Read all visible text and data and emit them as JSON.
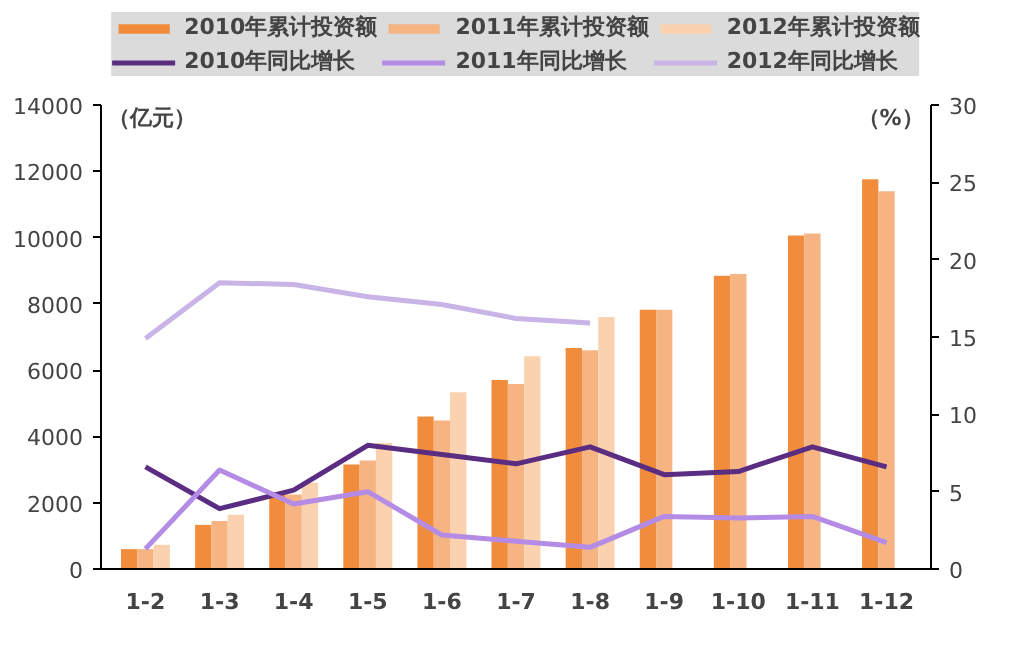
{
  "chart_data": {
    "type": "bar",
    "ylabel": "（亿元）",
    "y2label": "（%）",
    "categories": [
      "1-2",
      "1-3",
      "1-4",
      "1-5",
      "1-6",
      "1-7",
      "1-8",
      "1-9",
      "1-10",
      "1-11",
      "1-12"
    ],
    "series": [
      {
        "name": "2010年累计投资额",
        "color": "#f08c3c",
        "values": [
          600,
          1330,
          2300,
          3150,
          4600,
          5700,
          6670,
          7820,
          8850,
          10060,
          11760
        ]
      },
      {
        "name": "2011年累计投资额",
        "color": "#f5b482",
        "values": [
          600,
          1450,
          2250,
          3270,
          4480,
          5580,
          6600,
          7820,
          8900,
          10120,
          11400
        ]
      },
      {
        "name": "2012年累计投资额",
        "color": "#fad2b0",
        "values": [
          730,
          1640,
          2600,
          3800,
          5330,
          6420,
          7600,
          null,
          null,
          null,
          null
        ]
      },
      {
        "name": "2010年同比增长",
        "type": "line",
        "axis": "y2",
        "color": "#5a2d82",
        "values": [
          6.6,
          3.9,
          5.1,
          8.0,
          7.4,
          6.8,
          7.9,
          6.1,
          6.3,
          7.9,
          6.6
        ]
      },
      {
        "name": "2011年同比增长",
        "type": "line",
        "axis": "y2",
        "color": "#b48ce6",
        "values": [
          1.3,
          6.4,
          4.2,
          5.0,
          2.2,
          1.8,
          1.4,
          3.4,
          3.3,
          3.4,
          1.7
        ]
      },
      {
        "name": "2012年同比增长",
        "type": "line",
        "axis": "y2",
        "color": "#c8b4e6",
        "values": [
          14.9,
          18.5,
          18.4,
          17.6,
          17.1,
          16.2,
          15.9,
          null,
          null,
          null,
          null
        ]
      }
    ],
    "ylim": [
      0,
      14000
    ],
    "yticks": [
      0,
      2000,
      4000,
      6000,
      8000,
      10000,
      12000,
      14000
    ],
    "y2lim": [
      0,
      30
    ],
    "y2ticks": [
      0,
      5,
      10,
      15,
      20,
      25,
      30
    ],
    "legend": "top",
    "grid": false,
    "marker": "none",
    "line_style": "solid"
  }
}
